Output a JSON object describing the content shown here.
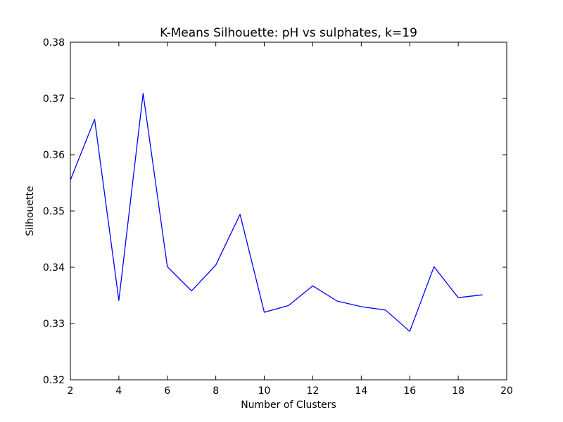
{
  "chart_data": {
    "type": "line",
    "title": "K-Means Silhouette: pH vs sulphates, k=19",
    "xlabel": "Number of Clusters",
    "ylabel": "Silhouette",
    "xlim": [
      2,
      20
    ],
    "ylim": [
      0.32,
      0.38
    ],
    "xticks": [
      2,
      4,
      6,
      8,
      10,
      12,
      14,
      16,
      18,
      20
    ],
    "yticks": [
      0.32,
      0.33,
      0.34,
      0.35,
      0.36,
      0.37,
      0.38
    ],
    "xtick_labels": [
      "2",
      "4",
      "6",
      "8",
      "10",
      "12",
      "14",
      "16",
      "18",
      "20"
    ],
    "ytick_labels": [
      "0.32",
      "0.33",
      "0.34",
      "0.35",
      "0.36",
      "0.37",
      "0.38"
    ],
    "grid": false,
    "legend": "none",
    "series": [
      {
        "color": "#0000ff",
        "x": [
          2,
          3,
          4,
          5,
          6,
          7,
          8,
          9,
          10,
          11,
          12,
          13,
          14,
          15,
          16,
          17,
          18,
          19
        ],
        "values": [
          0.3555,
          0.3663,
          0.3341,
          0.3709,
          0.3401,
          0.3358,
          0.3404,
          0.3494,
          0.332,
          0.3332,
          0.3367,
          0.334,
          0.333,
          0.3324,
          0.3286,
          0.3401,
          0.3346,
          0.3351
        ]
      }
    ]
  }
}
